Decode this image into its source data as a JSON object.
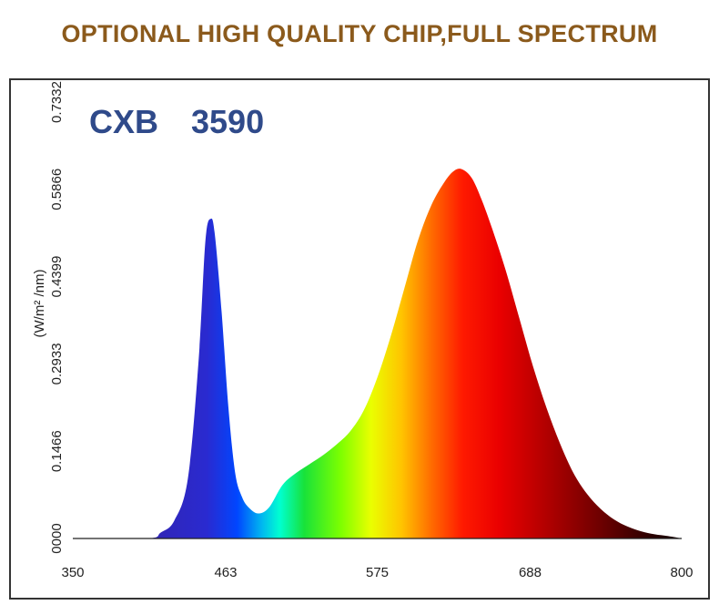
{
  "headline": "OPTIONAL HIGH QUALITY CHIP,FULL SPECTRUM",
  "logo": {
    "prefix": "CXB",
    "number": "3590",
    "colors": {
      "blue": "#2f4a8a",
      "red": "#d9262b"
    }
  },
  "chart_data": {
    "type": "area",
    "title": "",
    "xlabel": "",
    "ylabel": "(W/m² /nm)",
    "x_ticks": [
      "350",
      "463",
      "575",
      "688",
      "800"
    ],
    "y_ticks": [
      "0000",
      "0.1466",
      "0.2933",
      "0.4399",
      "0.5866",
      "0.7332"
    ],
    "xlim": [
      350,
      800
    ],
    "ylim": [
      0,
      0.7332
    ],
    "grid": false,
    "fill": "visible-spectrum color gradient",
    "x": [
      350,
      405,
      415,
      425,
      435,
      443,
      448,
      452,
      455,
      460,
      465,
      470,
      475,
      480,
      487,
      495,
      505,
      515,
      525,
      535,
      545,
      555,
      565,
      575,
      585,
      595,
      605,
      615,
      625,
      632,
      638,
      645,
      652,
      660,
      670,
      680,
      690,
      700,
      710,
      720,
      730,
      740,
      750,
      760,
      770,
      780,
      790,
      800
    ],
    "y": [
      0,
      0,
      0.01,
      0.03,
      0.1,
      0.3,
      0.5,
      0.537,
      0.51,
      0.38,
      0.22,
      0.11,
      0.07,
      0.052,
      0.042,
      0.052,
      0.09,
      0.11,
      0.125,
      0.14,
      0.158,
      0.18,
      0.215,
      0.27,
      0.34,
      0.42,
      0.5,
      0.56,
      0.6,
      0.618,
      0.62,
      0.605,
      0.57,
      0.52,
      0.45,
      0.37,
      0.29,
      0.22,
      0.16,
      0.11,
      0.075,
      0.05,
      0.032,
      0.02,
      0.012,
      0.007,
      0.004,
      0
    ]
  }
}
